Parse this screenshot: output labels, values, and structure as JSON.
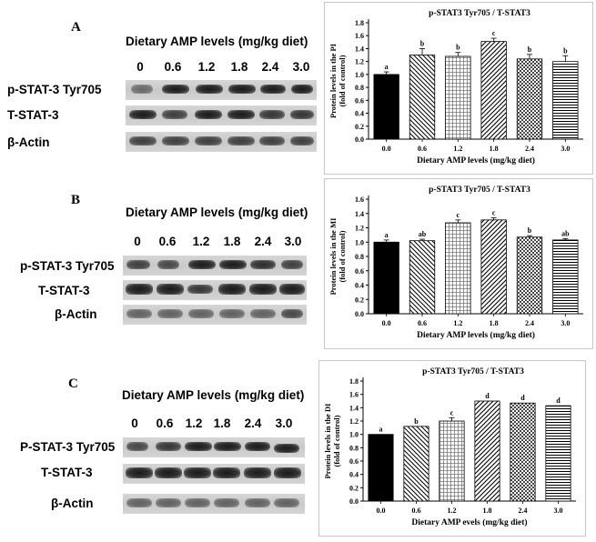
{
  "panels": [
    {
      "letter": "A",
      "blot": {
        "header": "Dietary AMP levels (mg/kg diet)",
        "lanes": [
          "0",
          "0.6",
          "1.2",
          "1.8",
          "2.4",
          "3.0"
        ],
        "rows": [
          "p-STAT-3 Tyr705",
          "T-STAT-3",
          "β-Actin"
        ]
      }
    },
    {
      "letter": "B",
      "blot": {
        "header": "Dietary AMP levels (mg/kg diet)",
        "lanes": [
          "0",
          "0.6",
          "1.2",
          "1.8",
          "2.4",
          "3.0"
        ],
        "rows": [
          "p-STAT-3 Tyr705",
          "T-STAT-3",
          "β-Actin"
        ]
      }
    },
    {
      "letter": "C",
      "blot": {
        "header": "Dietary AMP levels (mg/kg diet)",
        "lanes": [
          "0",
          "0.6",
          "1.2",
          "1.8",
          "2.4",
          "3.0"
        ],
        "rows": [
          "P-STAT-3 Tyr705",
          "T-STAT-3",
          "β-Actin"
        ]
      }
    }
  ],
  "chart_data": [
    {
      "type": "bar",
      "title": "p-STAT3 Tyr705  /  T-STAT3",
      "categories": [
        "0.0",
        "0.6",
        "1.2",
        "1.8",
        "2.4",
        "3.0"
      ],
      "values": [
        1.0,
        1.3,
        1.28,
        1.51,
        1.24,
        1.2
      ],
      "errors": [
        0.04,
        0.1,
        0.06,
        0.05,
        0.07,
        0.09
      ],
      "letters": [
        "a",
        "b",
        "b",
        "c",
        "b",
        "b"
      ],
      "xlabel": "Dietary AMP levels (mg/kg diet)",
      "ylabel": [
        "Protein levels in the PI",
        "(fold of control)"
      ],
      "ylim": [
        0,
        1.8
      ],
      "yticks": [
        "0.0",
        "0.2",
        "0.4",
        "0.6",
        "0.8",
        "1.0",
        "1.2",
        "1.4",
        "1.6",
        "1.8"
      ]
    },
    {
      "type": "bar",
      "title": "p-STAT3 Tyr705  /  T-STAT3",
      "categories": [
        "0.0",
        "0.6",
        "1.2",
        "1.8",
        "2.4",
        "3.0"
      ],
      "values": [
        1.0,
        1.02,
        1.27,
        1.31,
        1.07,
        1.03
      ],
      "errors": [
        0.03,
        0.02,
        0.04,
        0.03,
        0.02,
        0.02
      ],
      "letters": [
        "a",
        "ab",
        "c",
        "c",
        "b",
        "ab"
      ],
      "xlabel": "Dietary AMP levels (mg/kg diet)",
      "ylabel": [
        "Protein levels in the MI",
        "(fold of control)"
      ],
      "ylim": [
        0,
        1.6
      ],
      "yticks": [
        "0.0",
        "0.2",
        "0.4",
        "0.6",
        "0.8",
        "1.0",
        "1.2",
        "1.4",
        "1.6"
      ]
    },
    {
      "type": "bar",
      "title": "p-STAT3 Tyr705  /  T-STAT3",
      "categories": [
        "0.0",
        "0.6",
        "1.2",
        "1.8",
        "2.4",
        "3.0"
      ],
      "values": [
        1.0,
        1.12,
        1.2,
        1.5,
        1.47,
        1.43
      ],
      "errors": [
        0.0,
        0.0,
        0.05,
        0.0,
        0.0,
        0.0
      ],
      "letters": [
        "a",
        "b",
        "c",
        "d",
        "d",
        "d"
      ],
      "xlabel": "Dietary AMP evels (mg/kg diet)",
      "ylabel": [
        "Protein levels in the DI",
        "(fold of control)"
      ],
      "ylim": [
        0,
        1.8
      ],
      "yticks": [
        "0.0",
        "0.2",
        "0.4",
        "0.6",
        "0.8",
        "1.0",
        "1.2",
        "1.4",
        "1.6",
        "1.8"
      ]
    }
  ]
}
